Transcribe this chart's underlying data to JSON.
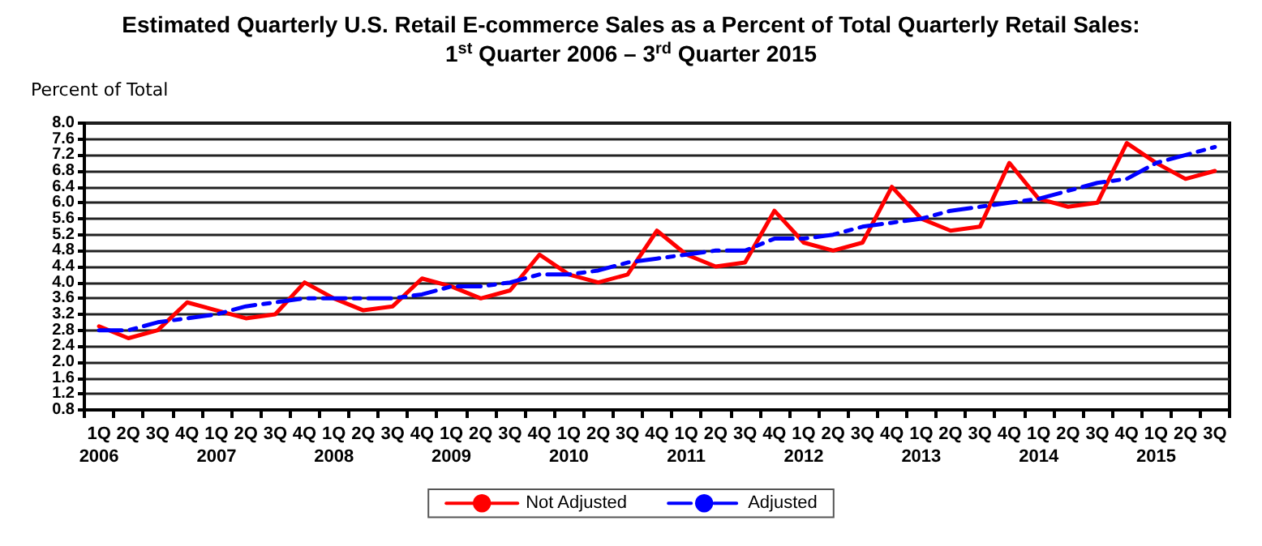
{
  "chart_data": {
    "type": "line",
    "title": "Estimated Quarterly U.S. Retail E-commerce Sales as a Percent of Total Quarterly Retail Sales:",
    "subtitle": "1$^{st}$ Quarter 2006 – 3$^{rd}$ Quarter 2015",
    "ylabel": "Percent of Total",
    "categories": [
      "1Q\n2006",
      "2Q",
      "3Q",
      "4Q",
      "1Q\n2007",
      "2Q",
      "3Q",
      "4Q",
      "1Q\n2008",
      "2Q",
      "3Q",
      "4Q",
      "1Q\n2009",
      "2Q",
      "3Q",
      "4Q",
      "1Q\n2010",
      "2Q",
      "3Q",
      "4Q",
      "1Q\n2011",
      "2Q",
      "3Q",
      "4Q",
      "1Q\n2012",
      "2Q",
      "3Q",
      "4Q",
      "1Q\n2013",
      "2Q",
      "3Q",
      "4Q",
      "1Q\n2014",
      "2Q",
      "3Q",
      "4Q",
      "1Q\n2015",
      "2Q",
      "3Q"
    ],
    "series": [
      {
        "name": "Not Adjusted",
        "color": "#ff0000",
        "line_style": "solid",
        "values": [
          2.9,
          2.6,
          2.8,
          3.5,
          3.3,
          3.1,
          3.2,
          4.0,
          3.6,
          3.3,
          3.4,
          4.1,
          3.9,
          3.6,
          3.8,
          4.7,
          4.2,
          4.0,
          4.2,
          5.3,
          4.7,
          4.4,
          4.5,
          5.8,
          5.0,
          4.8,
          5.0,
          6.4,
          5.6,
          5.3,
          5.4,
          7.0,
          6.1,
          5.9,
          6.0,
          7.5,
          7.0,
          6.6,
          6.8
        ]
      },
      {
        "name": "Adjusted",
        "color": "#0000ff",
        "line_style": "dashed",
        "values": [
          2.8,
          2.8,
          3.0,
          3.1,
          3.2,
          3.4,
          3.5,
          3.6,
          3.6,
          3.6,
          3.6,
          3.7,
          3.9,
          3.9,
          4.0,
          4.2,
          4.2,
          4.3,
          4.5,
          4.6,
          4.7,
          4.8,
          4.8,
          5.1,
          5.1,
          5.2,
          5.4,
          5.5,
          5.6,
          5.8,
          5.9,
          6.0,
          6.1,
          6.3,
          6.5,
          6.6,
          7.0,
          7.2,
          7.4
        ]
      }
    ],
    "ylim": [
      0.8,
      8.0
    ],
    "yticks": [
      0.8,
      1.2,
      1.6,
      {
        "value": 2,
        "label": "2.0"
      },
      2.4,
      2.8,
      3.2,
      3.6,
      {
        "value": 4,
        "label": "4.0"
      },
      4.4,
      4.8,
      5.2,
      5.6,
      {
        "value": 6,
        "label": "6.0"
      },
      6.4,
      6.8,
      7.2,
      7.6,
      {
        "value": 8,
        "label": "8.0"
      }
    ],
    "grid": "y",
    "legend": "bottom",
    "marker": "none"
  }
}
